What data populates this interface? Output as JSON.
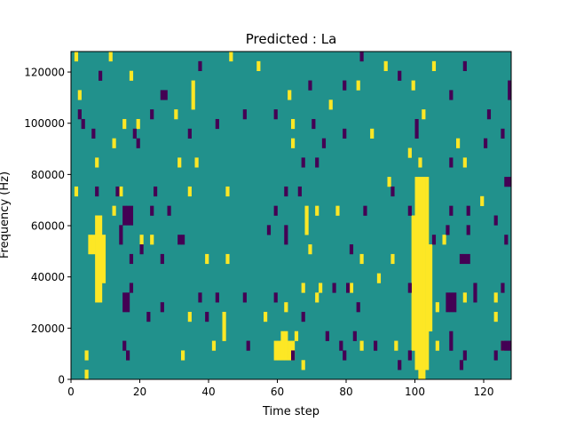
{
  "chart_data": {
    "type": "heatmap",
    "title": "Predicted : La",
    "xlabel": "Time step",
    "ylabel": "Frequency (Hz)",
    "xlim": [
      0,
      128
    ],
    "ylim": [
      0,
      128000
    ],
    "xticks": [
      0,
      20,
      40,
      60,
      80,
      100,
      120
    ],
    "yticks": [
      0,
      20000,
      40000,
      60000,
      80000,
      100000,
      120000
    ],
    "ytick_labels": [
      "0",
      "20000",
      "40000",
      "60000",
      "80000",
      "100000",
      "120000"
    ],
    "frequency_bins": 34,
    "colormap": {
      "-1": "#440154",
      "0": "#21918c",
      "1": "#fde725"
    },
    "default_value": 0,
    "grid": false,
    "segments_format": "[time_step, bin_start, bin_end, value]",
    "segments": [
      [
        1,
        33,
        33,
        1
      ],
      [
        11,
        33,
        33,
        1
      ],
      [
        46,
        33,
        33,
        1
      ],
      [
        91,
        32,
        32,
        1
      ],
      [
        54,
        32,
        32,
        1
      ],
      [
        105,
        32,
        32,
        1
      ],
      [
        17,
        31,
        31,
        1
      ],
      [
        99,
        30,
        30,
        1
      ],
      [
        83,
        30,
        30,
        1
      ],
      [
        35,
        28,
        30,
        1
      ],
      [
        2,
        29,
        29,
        1
      ],
      [
        63,
        29,
        29,
        1
      ],
      [
        75,
        28,
        28,
        1
      ],
      [
        30,
        27,
        27,
        1
      ],
      [
        15,
        26,
        26,
        1
      ],
      [
        19,
        26,
        26,
        1
      ],
      [
        64,
        26,
        26,
        1
      ],
      [
        102,
        27,
        27,
        1
      ],
      [
        12,
        24,
        24,
        1
      ],
      [
        87,
        25,
        25,
        1
      ],
      [
        64,
        24,
        24,
        1
      ],
      [
        112,
        24,
        24,
        1
      ],
      [
        98,
        23,
        23,
        1
      ],
      [
        114,
        22,
        22,
        1
      ],
      [
        7,
        22,
        22,
        1
      ],
      [
        31,
        22,
        22,
        1
      ],
      [
        36,
        22,
        22,
        1
      ],
      [
        101,
        22,
        22,
        1
      ],
      [
        1,
        19,
        19,
        1
      ],
      [
        14,
        19,
        19,
        1
      ],
      [
        34,
        19,
        19,
        1
      ],
      [
        45,
        19,
        19,
        1
      ],
      [
        92,
        20,
        20,
        1
      ],
      [
        68,
        15,
        17,
        1
      ],
      [
        71,
        17,
        17,
        1
      ],
      [
        77,
        17,
        17,
        1
      ],
      [
        100,
        1,
        20,
        1
      ],
      [
        101,
        1,
        20,
        1
      ],
      [
        102,
        1,
        20,
        1
      ],
      [
        103,
        1,
        20,
        1
      ],
      [
        99,
        3,
        16,
        1
      ],
      [
        104,
        5,
        13,
        1
      ],
      [
        101,
        0,
        1,
        1
      ],
      [
        102,
        0,
        1,
        1
      ],
      [
        5,
        13,
        14,
        1
      ],
      [
        6,
        13,
        14,
        1
      ],
      [
        7,
        8,
        16,
        1
      ],
      [
        8,
        8,
        16,
        1
      ],
      [
        9,
        10,
        14,
        1
      ],
      [
        59,
        2,
        3,
        1
      ],
      [
        60,
        2,
        3,
        1
      ],
      [
        61,
        2,
        4,
        1
      ],
      [
        62,
        2,
        4,
        1
      ],
      [
        63,
        2,
        3,
        1
      ],
      [
        64,
        2,
        3,
        1
      ],
      [
        65,
        4,
        4,
        1
      ],
      [
        44,
        4,
        6,
        1
      ],
      [
        56,
        6,
        6,
        1
      ],
      [
        62,
        7,
        7,
        1
      ],
      [
        34,
        6,
        6,
        1
      ],
      [
        41,
        3,
        3,
        1
      ],
      [
        32,
        2,
        2,
        1
      ],
      [
        4,
        2,
        2,
        1
      ],
      [
        4,
        0,
        0,
        1
      ],
      [
        67,
        1,
        1,
        1
      ],
      [
        84,
        3,
        3,
        1
      ],
      [
        106,
        3,
        3,
        1
      ],
      [
        106,
        7,
        7,
        1
      ],
      [
        123,
        8,
        8,
        1
      ],
      [
        94,
        3,
        3,
        1
      ],
      [
        81,
        9,
        9,
        1
      ],
      [
        89,
        10,
        10,
        1
      ],
      [
        93,
        12,
        12,
        1
      ],
      [
        84,
        12,
        12,
        1
      ],
      [
        69,
        13,
        13,
        1
      ],
      [
        108,
        14,
        14,
        1
      ],
      [
        119,
        18,
        18,
        1
      ],
      [
        12,
        17,
        17,
        1
      ],
      [
        39,
        12,
        12,
        1
      ],
      [
        45,
        12,
        12,
        1
      ],
      [
        20,
        14,
        14,
        1
      ],
      [
        23,
        14,
        14,
        1
      ],
      [
        67,
        9,
        9,
        1
      ],
      [
        72,
        9,
        9,
        1
      ],
      [
        71,
        8,
        8,
        1
      ],
      [
        125,
        3,
        3,
        1
      ],
      [
        114,
        8,
        8,
        1
      ],
      [
        123,
        6,
        6,
        1
      ],
      [
        37,
        32,
        32,
        -1
      ],
      [
        8,
        31,
        31,
        -1
      ],
      [
        84,
        33,
        33,
        -1
      ],
      [
        95,
        31,
        31,
        -1
      ],
      [
        114,
        32,
        32,
        -1
      ],
      [
        26,
        29,
        29,
        -1
      ],
      [
        27,
        29,
        29,
        -1
      ],
      [
        69,
        30,
        30,
        -1
      ],
      [
        79,
        30,
        30,
        -1
      ],
      [
        110,
        29,
        29,
        -1
      ],
      [
        127,
        29,
        30,
        -1
      ],
      [
        2,
        27,
        27,
        -1
      ],
      [
        23,
        27,
        27,
        -1
      ],
      [
        50,
        27,
        27,
        -1
      ],
      [
        59,
        27,
        27,
        -1
      ],
      [
        121,
        27,
        27,
        -1
      ],
      [
        3,
        26,
        26,
        -1
      ],
      [
        6,
        25,
        25,
        -1
      ],
      [
        18,
        25,
        25,
        -1
      ],
      [
        34,
        25,
        25,
        -1
      ],
      [
        42,
        26,
        26,
        -1
      ],
      [
        70,
        26,
        26,
        -1
      ],
      [
        79,
        25,
        25,
        -1
      ],
      [
        100,
        25,
        26,
        -1
      ],
      [
        125,
        25,
        25,
        -1
      ],
      [
        19,
        24,
        24,
        -1
      ],
      [
        73,
        24,
        24,
        -1
      ],
      [
        120,
        24,
        24,
        -1
      ],
      [
        67,
        22,
        22,
        -1
      ],
      [
        71,
        22,
        22,
        -1
      ],
      [
        110,
        22,
        22,
        -1
      ],
      [
        13,
        19,
        19,
        -1
      ],
      [
        62,
        19,
        19,
        -1
      ],
      [
        66,
        19,
        19,
        -1
      ],
      [
        93,
        19,
        19,
        -1
      ],
      [
        126,
        20,
        20,
        -1
      ],
      [
        127,
        20,
        20,
        -1
      ],
      [
        7,
        19,
        19,
        -1
      ],
      [
        24,
        19,
        19,
        -1
      ],
      [
        15,
        16,
        17,
        -1
      ],
      [
        16,
        16,
        17,
        -1
      ],
      [
        17,
        16,
        17,
        -1
      ],
      [
        23,
        17,
        17,
        -1
      ],
      [
        28,
        17,
        17,
        -1
      ],
      [
        59,
        17,
        17,
        -1
      ],
      [
        85,
        17,
        17,
        -1
      ],
      [
        98,
        17,
        17,
        -1
      ],
      [
        110,
        17,
        17,
        -1
      ],
      [
        115,
        17,
        17,
        -1
      ],
      [
        123,
        16,
        16,
        -1
      ],
      [
        14,
        14,
        15,
        -1
      ],
      [
        20,
        13,
        13,
        -1
      ],
      [
        57,
        15,
        15,
        -1
      ],
      [
        62,
        14,
        15,
        -1
      ],
      [
        81,
        13,
        13,
        -1
      ],
      [
        105,
        14,
        14,
        -1
      ],
      [
        109,
        15,
        15,
        -1
      ],
      [
        115,
        15,
        15,
        -1
      ],
      [
        126,
        14,
        14,
        -1
      ],
      [
        31,
        14,
        14,
        -1
      ],
      [
        32,
        14,
        14,
        -1
      ],
      [
        17,
        12,
        12,
        -1
      ],
      [
        26,
        12,
        12,
        -1
      ],
      [
        113,
        12,
        12,
        -1
      ],
      [
        114,
        12,
        12,
        -1
      ],
      [
        115,
        12,
        12,
        -1
      ],
      [
        17,
        9,
        9,
        -1
      ],
      [
        37,
        8,
        8,
        -1
      ],
      [
        42,
        8,
        8,
        -1
      ],
      [
        50,
        8,
        8,
        -1
      ],
      [
        59,
        8,
        8,
        -1
      ],
      [
        76,
        9,
        9,
        -1
      ],
      [
        80,
        9,
        9,
        -1
      ],
      [
        98,
        9,
        9,
        -1
      ],
      [
        117,
        8,
        9,
        -1
      ],
      [
        125,
        9,
        9,
        -1
      ],
      [
        15,
        7,
        8,
        -1
      ],
      [
        16,
        7,
        8,
        -1
      ],
      [
        109,
        7,
        8,
        -1
      ],
      [
        110,
        7,
        8,
        -1
      ],
      [
        111,
        7,
        8,
        -1
      ],
      [
        22,
        6,
        6,
        -1
      ],
      [
        26,
        7,
        7,
        -1
      ],
      [
        39,
        6,
        6,
        -1
      ],
      [
        67,
        6,
        6,
        -1
      ],
      [
        83,
        7,
        7,
        -1
      ],
      [
        15,
        3,
        3,
        -1
      ],
      [
        51,
        3,
        3,
        -1
      ],
      [
        74,
        4,
        4,
        -1
      ],
      [
        78,
        3,
        3,
        -1
      ],
      [
        82,
        4,
        4,
        -1
      ],
      [
        88,
        3,
        3,
        -1
      ],
      [
        110,
        3,
        4,
        -1
      ],
      [
        125,
        3,
        3,
        -1
      ],
      [
        126,
        3,
        3,
        -1
      ],
      [
        127,
        3,
        3,
        -1
      ],
      [
        16,
        2,
        2,
        -1
      ],
      [
        64,
        2,
        2,
        -1
      ],
      [
        79,
        2,
        2,
        -1
      ],
      [
        98,
        2,
        2,
        -1
      ],
      [
        114,
        2,
        2,
        -1
      ],
      [
        123,
        2,
        2,
        -1
      ],
      [
        95,
        1,
        1,
        -1
      ],
      [
        113,
        1,
        1,
        -1
      ]
    ]
  }
}
